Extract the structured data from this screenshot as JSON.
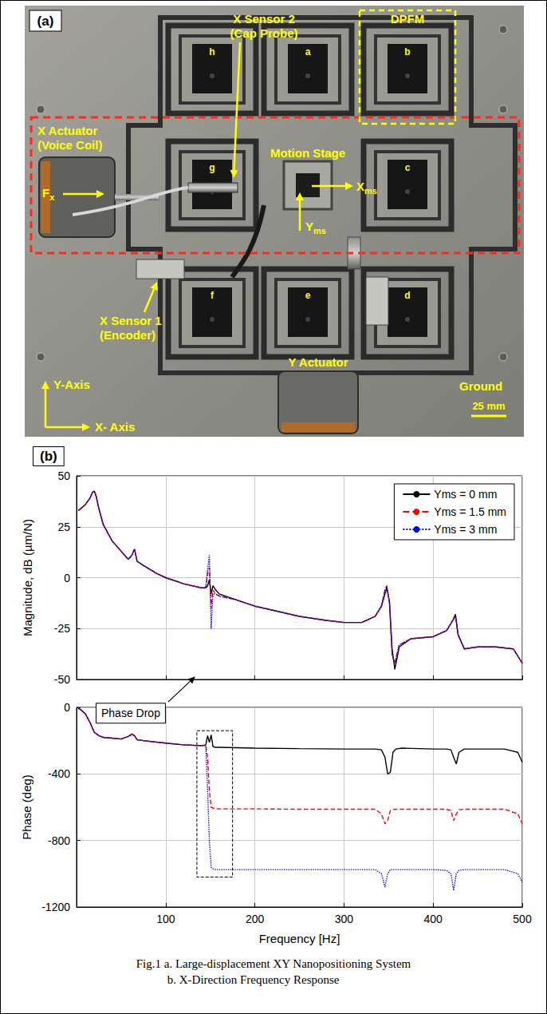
{
  "panel_a": {
    "label": "(a)",
    "x_sensor_2": [
      "X Sensor 2",
      "(Cap Probe)"
    ],
    "dpfm": "DPFM",
    "x_actuator": [
      "X Actuator",
      "(Voice Coil)"
    ],
    "force": "Fx",
    "motion_stage": "Motion Stage",
    "xms": "Xms",
    "yms": "Yms",
    "x_sensor_1": [
      "X Sensor 1",
      "(Encoder)"
    ],
    "y_actuator": "Y Actuator",
    "ground": "Ground",
    "scale": "25 mm",
    "y_axis": "Y-Axis",
    "x_axis": "X- Axis",
    "modules": [
      "a",
      "b",
      "c",
      "d",
      "e",
      "f",
      "g",
      "h"
    ]
  },
  "panel_b_label": "(b)",
  "caption": [
    "Fig.1 a. Large-displacement XY Nanopositioning System",
    "b. X-Direction Frequency Response"
  ],
  "chart_data": [
    {
      "type": "line",
      "ylabel": "Magnitude, dB (µm/N)",
      "xlim": [
        0,
        500
      ],
      "xticks": [
        100,
        200,
        300,
        400,
        500
      ],
      "ylim": [
        -50,
        50
      ],
      "yticks": [
        -50,
        -25,
        0,
        25,
        50
      ],
      "grid": true,
      "legend": "upper right",
      "tick_labels": "y",
      "x": [
        2,
        5,
        10,
        15,
        18,
        20,
        22,
        25,
        30,
        40,
        50,
        58,
        62,
        65,
        68,
        75,
        90,
        100,
        120,
        140,
        145,
        147,
        149,
        151,
        153,
        156,
        160,
        180,
        200,
        220,
        250,
        280,
        300,
        320,
        335,
        342,
        346,
        348,
        351,
        354,
        357,
        362,
        375,
        400,
        415,
        422,
        425,
        428,
        435,
        450,
        470,
        490,
        500
      ],
      "series": [
        {
          "name": "Yms = 0 mm",
          "color": "#000000",
          "line_style": "solid",
          "values": [
            33,
            34,
            36,
            39,
            42,
            42.5,
            40,
            34,
            26,
            18,
            13,
            9,
            11,
            14,
            8,
            6,
            2,
            0,
            -3,
            -5,
            -5,
            -4,
            -1,
            -8,
            -4,
            -6,
            -8,
            -11,
            -14,
            -16,
            -19,
            -21,
            -22,
            -22,
            -19,
            -14,
            -8,
            -5,
            -12,
            -35,
            -45,
            -34,
            -30,
            -29,
            -26,
            -21,
            -18,
            -28,
            -35,
            -34,
            -34,
            -35,
            -42
          ]
        },
        {
          "name": "Yms = 1.5 mm",
          "color": "#ff0000",
          "line_style": "dashed",
          "values": [
            33,
            34,
            36,
            39,
            42,
            42.5,
            40,
            34,
            26,
            18,
            13,
            9,
            11,
            14,
            8,
            6,
            2,
            0,
            -3,
            -5,
            -5,
            2,
            5,
            -15,
            -6,
            -8,
            -9,
            -11,
            -14,
            -16,
            -19,
            -21,
            -22,
            -22,
            -19,
            -14,
            -6,
            -4,
            -12,
            -38,
            -42,
            -33,
            -30,
            -29,
            -26,
            -21,
            -19,
            -28,
            -35,
            -34,
            -34,
            -35,
            -42
          ]
        },
        {
          "name": "Yms = 3 mm",
          "color": "#0000ff",
          "line_style": "dotted",
          "values": [
            33,
            34,
            36,
            39,
            42,
            42.5,
            40,
            34,
            26,
            18,
            13,
            9,
            11,
            14,
            8,
            6,
            2,
            0,
            -3,
            -5,
            -5,
            4,
            11,
            -25,
            -8,
            -8,
            -9,
            -11,
            -14,
            -16,
            -19,
            -21,
            -22,
            -22,
            -19,
            -14,
            -6,
            -4,
            -12,
            -38,
            -42,
            -33,
            -30,
            -29,
            -26,
            -21,
            -19,
            -28,
            -35,
            -34,
            -34,
            -35,
            -42
          ]
        }
      ]
    },
    {
      "type": "line",
      "xlabel": "Frequency [Hz]",
      "ylabel": "Phase (deg)",
      "xlim": [
        0,
        500
      ],
      "xticks": [
        100,
        200,
        300,
        400,
        500
      ],
      "ylim": [
        -1200,
        0
      ],
      "yticks": [
        -1200,
        -800,
        -400,
        0
      ],
      "grid": true,
      "x": [
        2,
        5,
        10,
        15,
        20,
        25,
        30,
        40,
        50,
        58,
        62,
        65,
        68,
        75,
        100,
        120,
        140,
        145,
        147,
        149,
        151,
        153,
        156,
        160,
        200,
        250,
        300,
        320,
        335,
        342,
        346,
        349,
        352,
        355,
        358,
        365,
        400,
        415,
        420,
        423,
        426,
        429,
        435,
        450,
        480,
        495,
        500
      ],
      "series": [
        {
          "name": "Yms = 0 mm",
          "color": "#000000",
          "line_style": "solid",
          "values": [
            -5,
            -15,
            -40,
            -90,
            -150,
            -170,
            -180,
            -185,
            -190,
            -175,
            -160,
            -170,
            -195,
            -200,
            -215,
            -225,
            -230,
            -225,
            -170,
            -210,
            -165,
            -235,
            -240,
            -240,
            -245,
            -248,
            -250,
            -250,
            -250,
            -255,
            -300,
            -400,
            -390,
            -270,
            -250,
            -245,
            -250,
            -250,
            -255,
            -300,
            -340,
            -270,
            -250,
            -250,
            -250,
            -270,
            -330
          ]
        },
        {
          "name": "Yms = 1.5 mm",
          "color": "#ff0000",
          "line_style": "dashed",
          "values": [
            -5,
            -15,
            -40,
            -90,
            -150,
            -170,
            -180,
            -185,
            -190,
            -175,
            -160,
            -170,
            -195,
            -200,
            -215,
            -225,
            -230,
            -230,
            -300,
            -500,
            -600,
            -605,
            -610,
            -610,
            -610,
            -612,
            -612,
            -612,
            -612,
            -640,
            -700,
            -680,
            -620,
            -615,
            -612,
            -612,
            -612,
            -612,
            -620,
            -680,
            -640,
            -615,
            -612,
            -612,
            -612,
            -640,
            -700
          ]
        },
        {
          "name": "Yms = 3 mm",
          "color": "#0000ff",
          "line_style": "dotted",
          "values": [
            -5,
            -15,
            -40,
            -90,
            -150,
            -170,
            -180,
            -185,
            -190,
            -175,
            -160,
            -170,
            -195,
            -200,
            -215,
            -225,
            -230,
            -230,
            -500,
            -800,
            -960,
            -970,
            -975,
            -975,
            -975,
            -975,
            -975,
            -975,
            -975,
            -1000,
            -1080,
            -1000,
            -975,
            -975,
            -975,
            -975,
            -975,
            -980,
            -1000,
            -1100,
            -1000,
            -980,
            -975,
            -975,
            -975,
            -1000,
            -1050
          ]
        }
      ],
      "annotations": [
        {
          "text": "Phase Drop",
          "x_range": [
            135,
            175
          ],
          "y_range": [
            -1020,
            -140
          ]
        }
      ]
    }
  ]
}
